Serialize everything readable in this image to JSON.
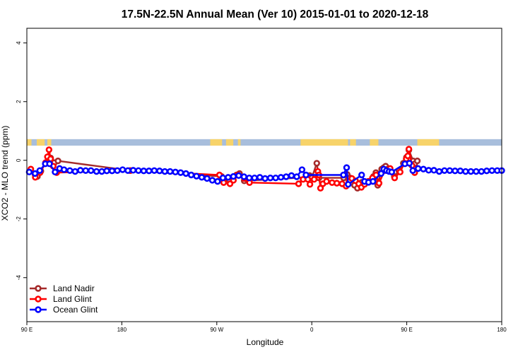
{
  "chart_data": {
    "type": "line",
    "title": "17.5N-22.5N Annual Mean (Ver 10)   2015-01-01 to 2020-12-18",
    "xlabel": "Longitude",
    "ylabel": "XCO2 - MLO trend (ppm)",
    "xlim": [
      90,
      450
    ],
    "ylim": [
      -5.5,
      4.5
    ],
    "x_ticks": [
      {
        "value": 90,
        "label": "90 E"
      },
      {
        "value": 162,
        "label": "180"
      },
      {
        "value": 234,
        "label": "90 W"
      },
      {
        "value": 306,
        "label": "0"
      },
      {
        "value": 378,
        "label": "90 E"
      },
      {
        "value": 450,
        "label": "180"
      }
    ],
    "y_ticks": [
      {
        "value": 4,
        "label": "4"
      },
      {
        "value": 2,
        "label": "2"
      },
      {
        "value": 0,
        "label": "0"
      },
      {
        "value": -2,
        "label": "-2"
      },
      {
        "value": -4,
        "label": "-4"
      }
    ],
    "grid": false,
    "legend_position": "bottom-left",
    "map_strip": {
      "y_range": [
        0.5,
        0.72
      ],
      "ocean_color": "#a8bedc",
      "land_color": "#f7d36a",
      "land_spans": [
        [
          90.0,
          93.5
        ],
        [
          97.5,
          103.5
        ],
        [
          105.5,
          108.5
        ],
        [
          229.0,
          238.0
        ],
        [
          241.0,
          246.5
        ],
        [
          250.0,
          252.0
        ],
        [
          297.5,
          333.5
        ],
        [
          335.0,
          339.5
        ],
        [
          350.0,
          356.5
        ],
        [
          386.0,
          402.5
        ]
      ]
    },
    "series": [
      {
        "name": "Land Nadir",
        "color": "#a52a2a",
        "points": [
          [
            96.2,
            -0.48
          ],
          [
            98.0,
            -0.55
          ],
          [
            100.6,
            -0.37
          ],
          [
            104.4,
            -0.08
          ],
          [
            106.8,
            0.06
          ],
          [
            108.0,
            0.08
          ],
          [
            110.8,
            -0.08
          ],
          [
            113.6,
            -0.02
          ],
          [
            168.6,
            -0.35
          ],
          [
            237.6,
            -0.55
          ],
          [
            240.0,
            -0.72
          ],
          [
            249.0,
            -0.5
          ],
          [
            251.2,
            -0.45
          ],
          [
            254.8,
            -0.7
          ],
          [
            302.2,
            -0.58
          ],
          [
            304.4,
            -0.52
          ],
          [
            306.0,
            -0.6
          ],
          [
            309.8,
            -0.1
          ],
          [
            311.4,
            -0.6
          ],
          [
            330.2,
            -0.6
          ],
          [
            332.8,
            -0.48
          ],
          [
            335.0,
            -0.6
          ],
          [
            338.4,
            -0.85
          ],
          [
            340.6,
            -0.95
          ],
          [
            342.2,
            -0.82
          ],
          [
            344.0,
            -0.75
          ],
          [
            350.0,
            -0.72
          ],
          [
            352.8,
            -0.55
          ],
          [
            354.6,
            -0.42
          ],
          [
            356.0,
            -0.85
          ],
          [
            359.0,
            -0.3
          ],
          [
            360.6,
            -0.25
          ],
          [
            362.0,
            -0.2
          ],
          [
            363.6,
            -0.3
          ],
          [
            368.6,
            -0.55
          ],
          [
            372.0,
            -0.35
          ],
          [
            375.4,
            -0.1
          ],
          [
            377.8,
            0.1
          ],
          [
            379.6,
            0.35
          ],
          [
            382.8,
            -0.02
          ],
          [
            384.0,
            -0.12
          ],
          [
            386.0,
            -0.02
          ]
        ]
      },
      {
        "name": "Land Glint",
        "color": "#ff0000",
        "points": [
          [
            93.0,
            -0.3
          ],
          [
            96.4,
            -0.58
          ],
          [
            100.0,
            -0.42
          ],
          [
            104.2,
            -0.08
          ],
          [
            105.6,
            0.12
          ],
          [
            106.8,
            0.36
          ],
          [
            108.0,
            0.05
          ],
          [
            110.0,
            -0.2
          ],
          [
            112.6,
            -0.42
          ],
          [
            168.2,
            -0.35
          ],
          [
            236.0,
            -0.5
          ],
          [
            239.2,
            -0.76
          ],
          [
            244.0,
            -0.8
          ],
          [
            246.6,
            -0.68
          ],
          [
            250.0,
            -0.5
          ],
          [
            255.0,
            -0.62
          ],
          [
            258.8,
            -0.76
          ],
          [
            296.0,
            -0.8
          ],
          [
            299.4,
            -0.65
          ],
          [
            303.0,
            -0.65
          ],
          [
            304.6,
            -0.82
          ],
          [
            307.8,
            -0.65
          ],
          [
            310.6,
            -0.38
          ],
          [
            311.4,
            -0.5
          ],
          [
            312.6,
            -0.95
          ],
          [
            314.4,
            -0.8
          ],
          [
            317.2,
            -0.72
          ],
          [
            321.4,
            -0.76
          ],
          [
            325.0,
            -0.78
          ],
          [
            329.0,
            -0.8
          ],
          [
            332.0,
            -0.88
          ],
          [
            334.2,
            -0.72
          ],
          [
            336.4,
            -0.62
          ],
          [
            339.2,
            -0.7
          ],
          [
            341.6,
            -0.8
          ],
          [
            343.6,
            -0.92
          ],
          [
            346.0,
            -0.82
          ],
          [
            348.8,
            -0.72
          ],
          [
            352.0,
            -0.6
          ],
          [
            354.8,
            -0.5
          ],
          [
            357.0,
            -0.78
          ],
          [
            361.2,
            -0.35
          ],
          [
            365.4,
            -0.28
          ],
          [
            368.8,
            -0.6
          ],
          [
            373.0,
            -0.4
          ],
          [
            377.6,
            0.05
          ],
          [
            378.8,
            0.15
          ],
          [
            379.6,
            0.38
          ],
          [
            382.0,
            -0.18
          ],
          [
            384.0,
            -0.42
          ]
        ]
      },
      {
        "name": "Ocean Glint",
        "color": "#0000ff",
        "points": [
          [
            91.8,
            -0.4
          ],
          [
            96.2,
            -0.45
          ],
          [
            99.8,
            -0.35
          ],
          [
            104.0,
            -0.12
          ],
          [
            107.2,
            -0.12
          ],
          [
            111.4,
            -0.4
          ],
          [
            114.8,
            -0.28
          ],
          [
            118.2,
            -0.32
          ],
          [
            122.6,
            -0.35
          ],
          [
            126.6,
            -0.38
          ],
          [
            130.6,
            -0.34
          ],
          [
            134.6,
            -0.35
          ],
          [
            138.6,
            -0.35
          ],
          [
            142.8,
            -0.38
          ],
          [
            146.8,
            -0.38
          ],
          [
            150.6,
            -0.36
          ],
          [
            154.6,
            -0.36
          ],
          [
            158.6,
            -0.35
          ],
          [
            162.6,
            -0.32
          ],
          [
            166.6,
            -0.35
          ],
          [
            170.6,
            -0.34
          ],
          [
            174.6,
            -0.35
          ],
          [
            178.6,
            -0.36
          ],
          [
            182.6,
            -0.36
          ],
          [
            186.6,
            -0.35
          ],
          [
            190.6,
            -0.36
          ],
          [
            194.6,
            -0.38
          ],
          [
            198.6,
            -0.38
          ],
          [
            202.6,
            -0.4
          ],
          [
            206.6,
            -0.42
          ],
          [
            210.6,
            -0.45
          ],
          [
            214.6,
            -0.5
          ],
          [
            218.6,
            -0.54
          ],
          [
            222.6,
            -0.58
          ],
          [
            226.6,
            -0.62
          ],
          [
            230.6,
            -0.68
          ],
          [
            234.6,
            -0.72
          ],
          [
            238.6,
            -0.6
          ],
          [
            242.6,
            -0.58
          ],
          [
            246.6,
            -0.55
          ],
          [
            250.6,
            -0.52
          ],
          [
            254.6,
            -0.56
          ],
          [
            258.6,
            -0.6
          ],
          [
            262.6,
            -0.6
          ],
          [
            266.6,
            -0.58
          ],
          [
            270.6,
            -0.62
          ],
          [
            274.6,
            -0.6
          ],
          [
            278.6,
            -0.6
          ],
          [
            282.6,
            -0.58
          ],
          [
            286.6,
            -0.56
          ],
          [
            290.6,
            -0.52
          ],
          [
            294.6,
            -0.56
          ],
          [
            298.6,
            -0.32
          ],
          [
            301.6,
            -0.5
          ],
          [
            330.0,
            -0.5
          ],
          [
            332.4,
            -0.25
          ],
          [
            333.6,
            -0.82
          ],
          [
            343.8,
            -0.5
          ],
          [
            346.0,
            -0.72
          ],
          [
            349.0,
            -0.75
          ],
          [
            352.4,
            -0.72
          ],
          [
            358.6,
            -0.45
          ],
          [
            360.6,
            -0.3
          ],
          [
            362.6,
            -0.35
          ],
          [
            364.6,
            -0.38
          ],
          [
            366.6,
            -0.4
          ],
          [
            376.6,
            -0.12
          ],
          [
            380.0,
            -0.1
          ],
          [
            382.6,
            -0.35
          ],
          [
            386.6,
            -0.28
          ],
          [
            390.6,
            -0.3
          ],
          [
            394.6,
            -0.34
          ],
          [
            398.6,
            -0.34
          ],
          [
            402.6,
            -0.38
          ],
          [
            406.6,
            -0.35
          ],
          [
            410.6,
            -0.35
          ],
          [
            414.6,
            -0.36
          ],
          [
            418.6,
            -0.36
          ],
          [
            422.6,
            -0.38
          ],
          [
            426.6,
            -0.38
          ],
          [
            430.6,
            -0.38
          ],
          [
            434.6,
            -0.38
          ],
          [
            438.6,
            -0.36
          ],
          [
            442.6,
            -0.35
          ],
          [
            446.6,
            -0.35
          ],
          [
            450.0,
            -0.35
          ]
        ]
      }
    ]
  }
}
